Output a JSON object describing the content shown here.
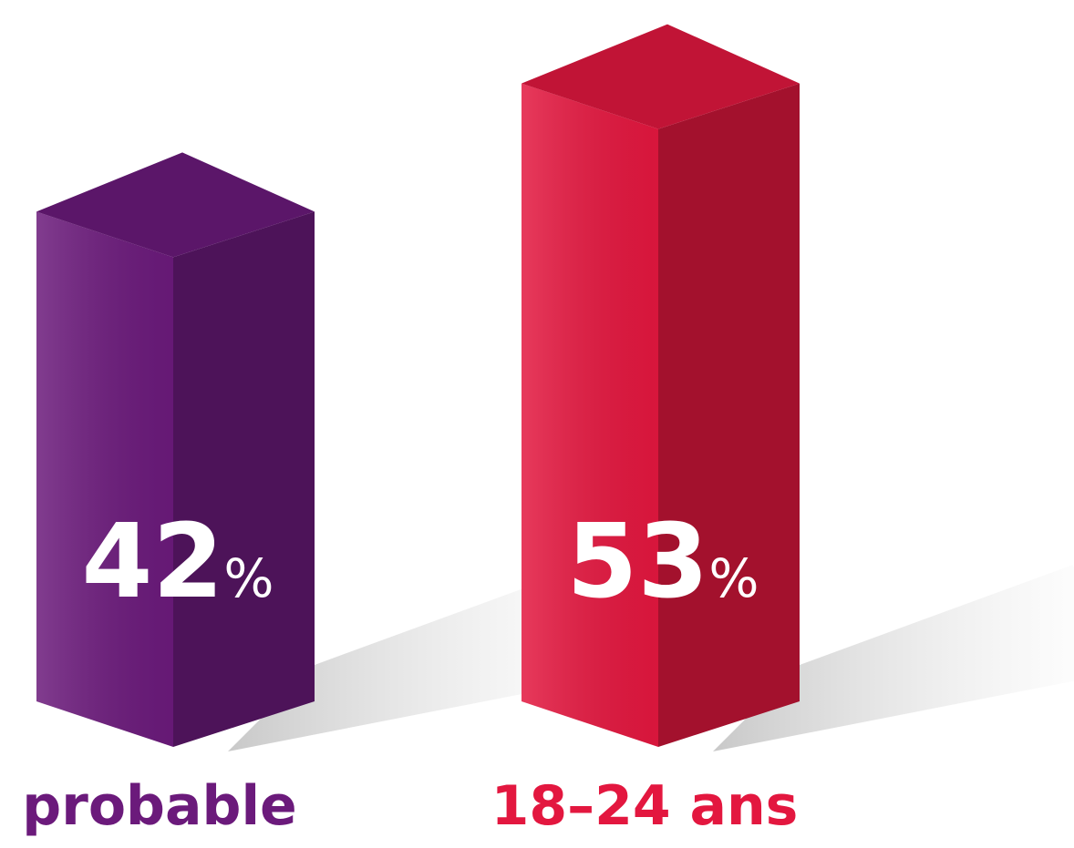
{
  "chart_data": {
    "type": "bar",
    "categories": [
      "probable",
      "18–24 ans"
    ],
    "values": [
      42,
      53
    ],
    "value_labels": [
      "42%",
      "53%"
    ],
    "colors": [
      "#6b1a7b",
      "#e3173f"
    ]
  }
}
